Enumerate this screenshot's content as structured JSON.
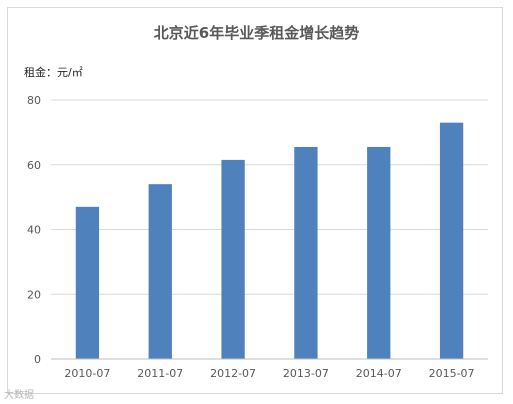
{
  "chart_data": {
    "type": "bar",
    "title": "北京近6年毕业季租金增长趋势",
    "unit_label": "租金：元/㎡",
    "categories": [
      "2010-07",
      "2011-07",
      "2012-07",
      "2013-07",
      "2014-07",
      "2015-07"
    ],
    "values": [
      47,
      54,
      61.5,
      65.5,
      65.5,
      73
    ],
    "ylim": [
      0,
      80
    ],
    "yticks": [
      0,
      20,
      40,
      60,
      80
    ],
    "grid": true,
    "bar_color": "#4f81bd",
    "legend": "none"
  },
  "watermark": "大数据"
}
